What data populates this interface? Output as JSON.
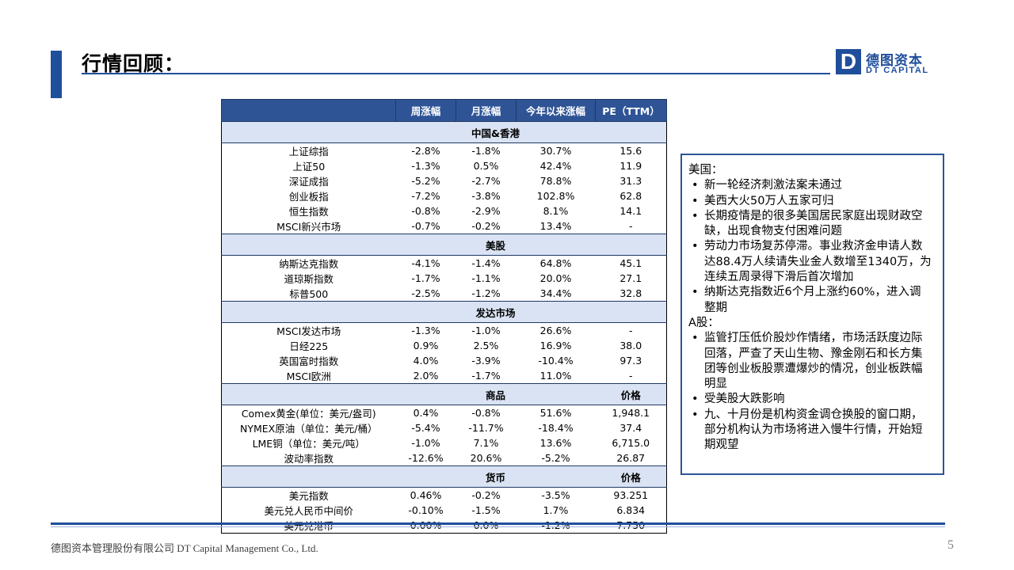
{
  "title": "行情回顾：",
  "logo": {
    "mark": "D",
    "cn": "德图资本",
    "en": "DT CAPITAL"
  },
  "table": {
    "headers": [
      "",
      "周涨幅",
      "月涨幅",
      "今年以来涨幅",
      "PE（TTM）"
    ],
    "sections": [
      {
        "title": "中国&香港",
        "title_last": "",
        "rows": [
          [
            "上证综指",
            "-2.8%",
            "-1.8%",
            "30.7%",
            "15.6"
          ],
          [
            "上证50",
            "-1.3%",
            "0.5%",
            "42.4%",
            "11.9"
          ],
          [
            "深证成指",
            "-5.2%",
            "-2.7%",
            "78.8%",
            "31.3"
          ],
          [
            "创业板指",
            "-7.2%",
            "-3.8%",
            "102.8%",
            "62.8"
          ],
          [
            "恒生指数",
            "-0.8%",
            "-2.9%",
            "8.1%",
            "14.1"
          ],
          [
            "MSCI新兴市场",
            "-0.7%",
            "-0.2%",
            "13.4%",
            "-"
          ]
        ]
      },
      {
        "title": "美股",
        "title_last": "",
        "rows": [
          [
            "纳斯达克指数",
            "-4.1%",
            "-1.4%",
            "64.8%",
            "45.1"
          ],
          [
            "道琼斯指数",
            "-1.7%",
            "-1.1%",
            "20.0%",
            "27.1"
          ],
          [
            "标普500",
            "-2.5%",
            "-1.2%",
            "34.4%",
            "32.8"
          ]
        ]
      },
      {
        "title": "发达市场",
        "title_last": "",
        "rows": [
          [
            "MSCI发达市场",
            "-1.3%",
            "-1.0%",
            "26.6%",
            "-"
          ],
          [
            "日经225",
            "0.9%",
            "2.5%",
            "16.9%",
            "38.0"
          ],
          [
            "英国富时指数",
            "4.0%",
            "-3.9%",
            "-10.4%",
            "97.3"
          ],
          [
            "MSCI欧洲",
            "2.0%",
            "-1.7%",
            "11.0%",
            "-"
          ]
        ]
      },
      {
        "title": "商品",
        "title_last": "价格",
        "rows": [
          [
            "Comex黄金(单位：美元/盎司)",
            "0.4%",
            "-0.8%",
            "51.6%",
            "1,948.1"
          ],
          [
            "NYMEX原油（单位：美元/桶）",
            "-5.4%",
            "-11.7%",
            "-18.4%",
            "37.4"
          ],
          [
            "LME铜（单位：美元/吨）",
            "-1.0%",
            "7.1%",
            "13.6%",
            "6,715.0"
          ],
          [
            "波动率指数",
            "-12.6%",
            "20.6%",
            "-5.2%",
            "26.87"
          ]
        ]
      },
      {
        "title": "货币",
        "title_last": "价格",
        "rows": [
          [
            "美元指数",
            "0.46%",
            "-0.2%",
            "-3.5%",
            "93.251"
          ],
          [
            "美元兑人民币中间价",
            "-0.10%",
            "-1.5%",
            "1.7%",
            "6.834"
          ],
          [
            "美元兑港币",
            "0.00%",
            "0.0%",
            "-1.2%",
            "7.750"
          ]
        ]
      }
    ]
  },
  "notes": {
    "us_heading": "美国：",
    "us_items": [
      "新一轮经济刺激法案未通过",
      "美西大火50万人五家可归",
      "长期疫情是的很多美国居民家庭出现财政空缺，出现食物支付困难问题",
      "劳动力市场复苏停滞。事业救济金申请人数达88.4万人续请失业金人数增至1340万，为连续五周录得下滑后首次增加",
      "纳斯达克指数近6个月上涨约60%，进入调整期"
    ],
    "a_heading": "A股：",
    "a_items": [
      "监管打压低价股炒作情绪，市场活跃度边际回落，严查了天山生物、豫金刚石和长方集团等创业板股票遭爆炒的情况，创业板跌幅明显",
      "受美股大跌影响",
      "九、十月份是机构资金调仓换股的窗口期，部分机构认为市场将进入慢牛行情，开始短期观望"
    ]
  },
  "footer": {
    "company": "德图资本管理股份有限公司 DT Capital Management Co., Ltd.",
    "page": "5"
  }
}
